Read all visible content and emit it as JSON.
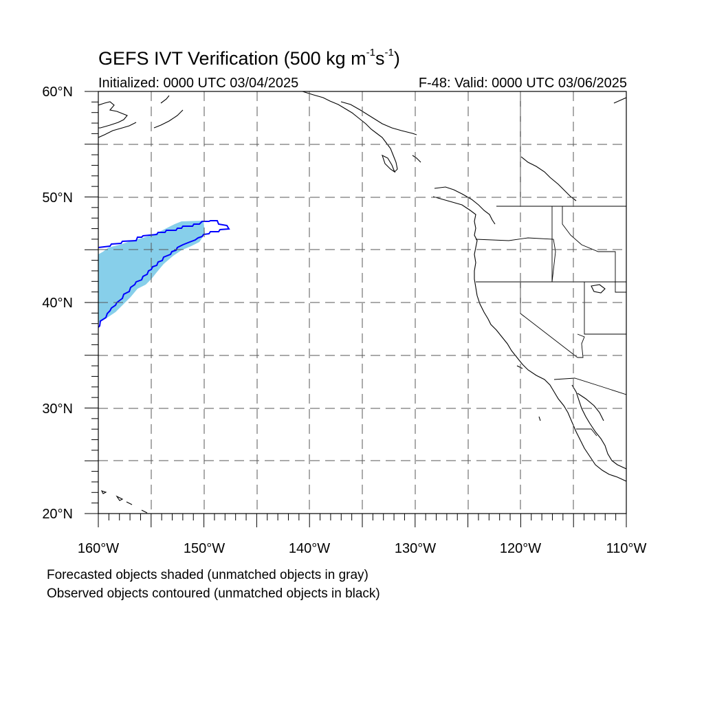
{
  "title": {
    "main": "GEFS IVT Verification (500 kg m",
    "exp1": "-1",
    "mid": "s",
    "exp2": "-1",
    "end": ")"
  },
  "subtitle": {
    "initialized": "Initialized: 0000 UTC 03/04/2025",
    "valid": "F-48: Valid: 0000 UTC 03/06/2025"
  },
  "map": {
    "lon_range": [
      -160,
      -110
    ],
    "lat_range": [
      20,
      60
    ],
    "grid": "dashed every 5 degrees",
    "x_ticks": [
      "160°W",
      "150°W",
      "140°W",
      "130°W",
      "120°W",
      "110°W"
    ],
    "y_ticks": [
      "60°N",
      "50°N",
      "40°N",
      "30°N",
      "20°N"
    ],
    "colors": {
      "forecast_fill": "#87cfea",
      "observed_contour": "#0000ff",
      "coastline": "#000000",
      "grid": "#555555"
    }
  },
  "legend": {
    "line1": "Forecasted objects shaded (unmatched objects in gray)",
    "line2": "Observed objects contoured (unmatched objects in black)"
  }
}
